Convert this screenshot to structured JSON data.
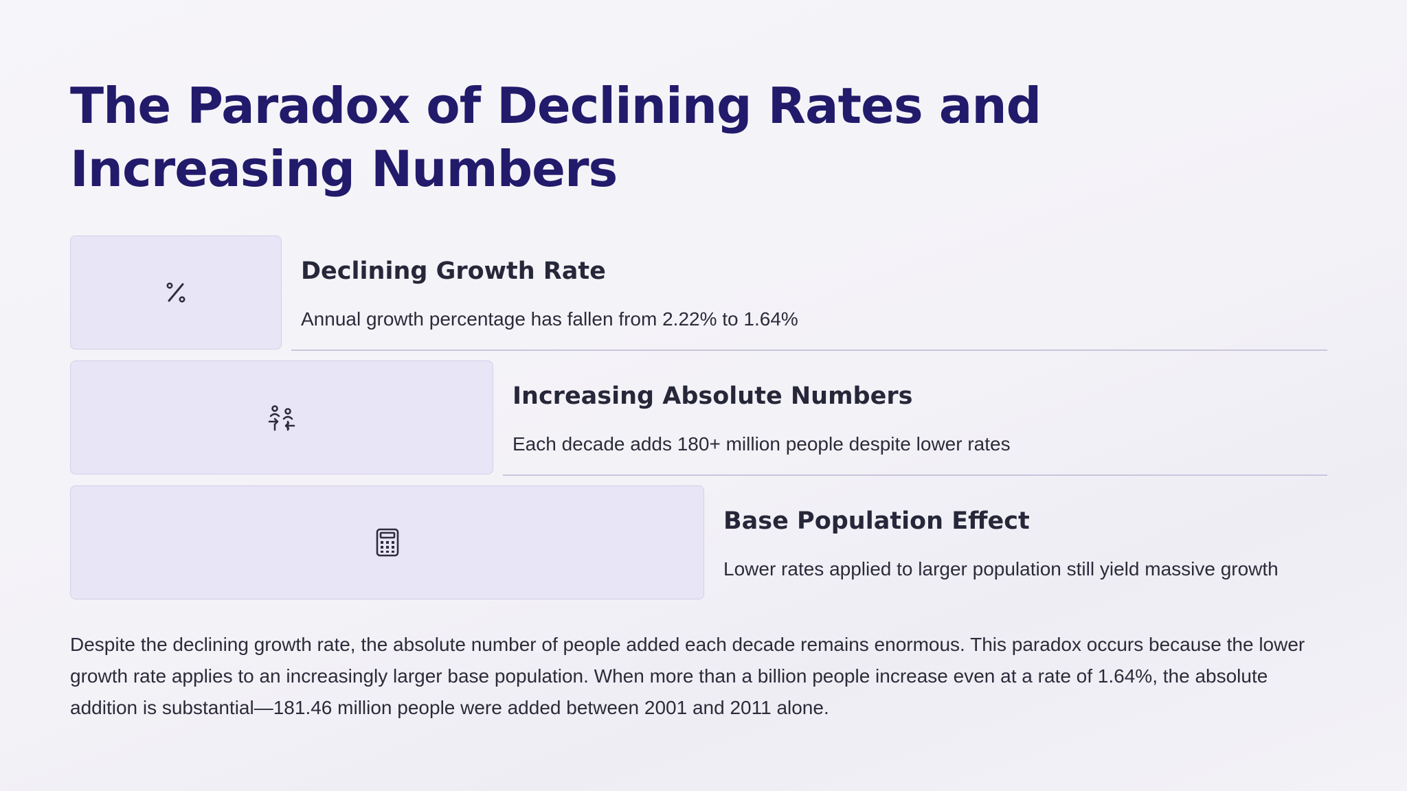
{
  "title": "The Paradox of Declining Rates and Increasing Numbers",
  "items": [
    {
      "icon": "percent-icon",
      "heading": "Declining Growth Rate",
      "description": "Annual growth percentage has fallen from 2.22% to 1.64%"
    },
    {
      "icon": "users-arrows-icon",
      "heading": "Increasing Absolute Numbers",
      "description": "Each decade adds 180+ million people despite lower rates"
    },
    {
      "icon": "calculator-icon",
      "heading": "Base Population Effect",
      "description": "Lower rates applied to larger population still yield massive growth"
    }
  ],
  "body": "Despite the declining growth rate, the absolute number of people added each decade remains enormous. This paradox occurs because the lower growth rate applies to an increasingly larger base population. When more than a billion people increase even at a rate of 1.64%, the absolute addition is substantial—181.46 million people were added between 2001 and 2011 alone.",
  "colors": {
    "title": "#221a6a",
    "card_fill": "#e8e5f7",
    "text": "#2b2b3a"
  }
}
